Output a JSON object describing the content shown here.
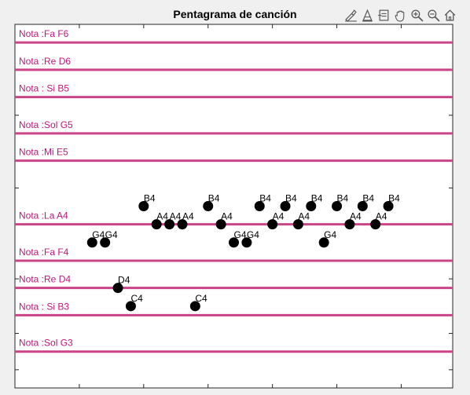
{
  "title": "Pentagrama de canción",
  "toolbar": {
    "icons": [
      "brush-icon",
      "data-tip-icon",
      "export-icon",
      "pan-hand-icon",
      "zoom-in-icon",
      "zoom-out-icon",
      "home-icon"
    ]
  },
  "colors": {
    "staff_line": "#cc4488",
    "label": "#c0157a",
    "point": "#000000",
    "axes_bg": "#ffffff",
    "figure_bg": "#f0f0f0"
  },
  "chart_data": {
    "type": "scatter",
    "title": "Pentagrama de canción",
    "xlabel": "",
    "ylabel": "",
    "xlim": [
      0,
      34
    ],
    "ylim": [
      0,
      20
    ],
    "grid": false,
    "staff_lines": [
      {
        "label": "Nota :Fa F6",
        "y": 19
      },
      {
        "label": "Nota :Re D6",
        "y": 17.5
      },
      {
        "label": "Nota : Si B5",
        "y": 16
      },
      {
        "label": "Nota :Sol G5",
        "y": 14
      },
      {
        "label": "Nota :Mi E5",
        "y": 12.5
      },
      {
        "label": "Nota :La A4",
        "y": 9
      },
      {
        "label": "Nota  :Fa F4",
        "y": 7
      },
      {
        "label": "Nota  :Re D4",
        "y": 5.5
      },
      {
        "label": "Nota : Si B3",
        "y": 4
      },
      {
        "label": "Nota :Sol G3",
        "y": 2
      }
    ],
    "points": [
      {
        "x": 6,
        "y": 8,
        "label": "G4"
      },
      {
        "x": 7,
        "y": 8,
        "label": "G4"
      },
      {
        "x": 8,
        "y": 5.5,
        "label": "D4"
      },
      {
        "x": 9,
        "y": 4.5,
        "label": "C4"
      },
      {
        "x": 10,
        "y": 10,
        "label": "B4"
      },
      {
        "x": 11,
        "y": 9,
        "label": "A4"
      },
      {
        "x": 12,
        "y": 9,
        "label": "A4"
      },
      {
        "x": 13,
        "y": 9,
        "label": "A4"
      },
      {
        "x": 14,
        "y": 4.5,
        "label": "C4"
      },
      {
        "x": 15,
        "y": 10,
        "label": "B4"
      },
      {
        "x": 16,
        "y": 9,
        "label": "A4"
      },
      {
        "x": 17,
        "y": 8,
        "label": "G4"
      },
      {
        "x": 18,
        "y": 8,
        "label": "G4"
      },
      {
        "x": 19,
        "y": 10,
        "label": "B4"
      },
      {
        "x": 20,
        "y": 9,
        "label": "A4"
      },
      {
        "x": 21,
        "y": 10,
        "label": "B4"
      },
      {
        "x": 22,
        "y": 9,
        "label": "A4"
      },
      {
        "x": 23,
        "y": 10,
        "label": "B4"
      },
      {
        "x": 24,
        "y": 8,
        "label": "G4"
      },
      {
        "x": 25,
        "y": 10,
        "label": "B4"
      },
      {
        "x": 26,
        "y": 9,
        "label": "A4"
      },
      {
        "x": 27,
        "y": 10,
        "label": "B4"
      },
      {
        "x": 28,
        "y": 9,
        "label": "A4"
      },
      {
        "x": 29,
        "y": 10,
        "label": "B4"
      }
    ],
    "xticks": [
      0,
      5,
      10,
      15,
      20,
      25,
      30,
      34
    ],
    "yticks": [
      1,
      3,
      6,
      11,
      15
    ]
  }
}
